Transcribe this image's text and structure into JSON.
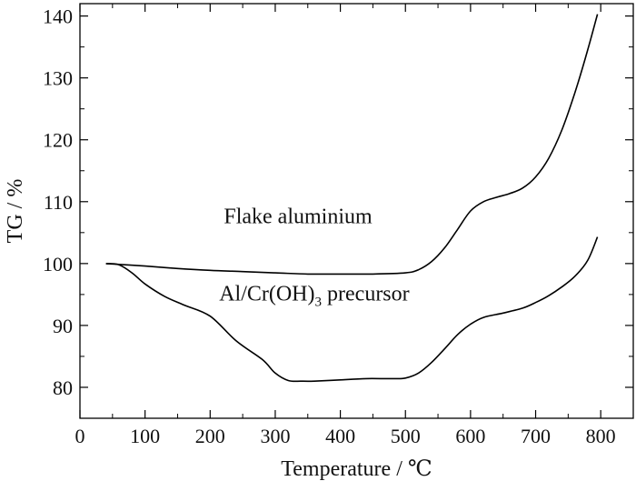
{
  "chart_data": {
    "type": "line",
    "title": "",
    "xlabel": "Temperature / ℃",
    "ylabel": "TG / %",
    "xlim": [
      0,
      850
    ],
    "ylim": [
      75,
      142
    ],
    "xticks": [
      0,
      100,
      200,
      300,
      400,
      500,
      600,
      700,
      800
    ],
    "yticks": [
      80,
      90,
      100,
      110,
      120,
      130,
      140
    ],
    "grid": false,
    "legend": "none",
    "line_color": "#000000",
    "annotations": [
      {
        "text": "Flake aluminium",
        "x": 335,
        "y": 106.5
      },
      {
        "text_parts": [
          "Al/Cr(OH)",
          "3",
          " precursor"
        ],
        "x": 360,
        "y": 94
      }
    ],
    "series": [
      {
        "x": [
          40,
          100,
          150,
          200,
          250,
          300,
          350,
          400,
          450,
          500,
          520,
          540,
          560,
          580,
          600,
          620,
          640,
          660,
          680,
          700,
          720,
          740,
          760,
          780,
          795
        ],
        "y": [
          100,
          99.6,
          99.2,
          98.9,
          98.7,
          98.5,
          98.3,
          98.3,
          98.3,
          98.5,
          99.0,
          100.3,
          102.5,
          105.5,
          108.5,
          110.0,
          110.7,
          111.3,
          112.2,
          114.0,
          117.0,
          121.5,
          127.5,
          134.5,
          140.3
        ]
      },
      {
        "x": [
          40,
          60,
          80,
          100,
          130,
          160,
          200,
          240,
          280,
          300,
          320,
          340,
          360,
          400,
          440,
          480,
          500,
          520,
          540,
          560,
          580,
          600,
          620,
          650,
          680,
          700,
          720,
          740,
          760,
          780,
          795
        ],
        "y": [
          100,
          99.8,
          98.5,
          96.7,
          94.7,
          93.3,
          91.5,
          87.5,
          84.5,
          82.3,
          81.1,
          81.0,
          81.0,
          81.2,
          81.4,
          81.4,
          81.5,
          82.3,
          84.0,
          86.2,
          88.5,
          90.2,
          91.3,
          92.0,
          92.8,
          93.7,
          94.8,
          96.2,
          97.9,
          100.5,
          104.3
        ]
      }
    ]
  }
}
